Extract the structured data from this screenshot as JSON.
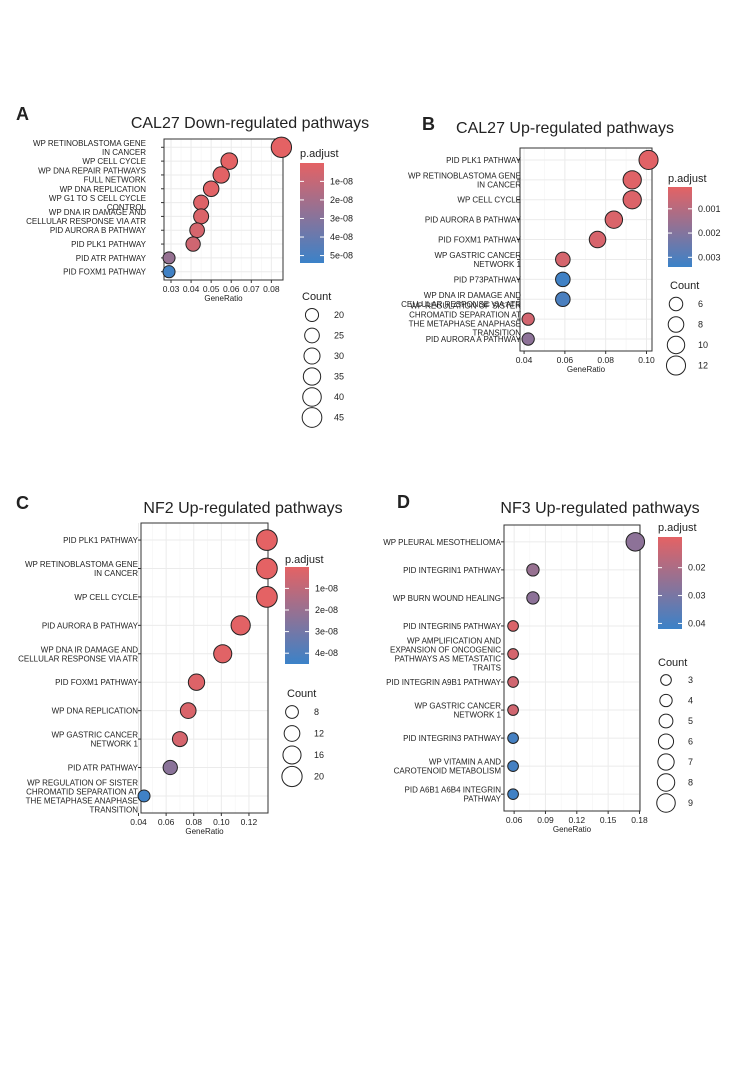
{
  "chart_data": [
    {
      "panel": "A",
      "type": "scatter",
      "title": "CAL27 Down-regulated pathways",
      "xlabel": "GeneRatio",
      "xlim": [
        0.0265,
        0.0858
      ],
      "xticks": [
        "0.03",
        "0.04",
        "0.05",
        "0.06",
        "0.07",
        "0.08"
      ],
      "xtick_values": [
        0.03,
        0.04,
        0.05,
        0.06,
        0.07,
        0.08
      ],
      "categories": [
        [
          "WP RETINOBLASTOMA GENE",
          "IN CANCER"
        ],
        [
          "WP CELL CYCLE"
        ],
        [
          "WP DNA REPAIR PATHWAYS",
          "FULL NETWORK"
        ],
        [
          "WP DNA REPLICATION"
        ],
        [
          "WP G1 TO S CELL CYCLE",
          "CONTROL"
        ],
        [
          "WP DNA IR DAMAGE AND",
          "CELLULAR RESPONSE VIA ATR"
        ],
        [
          "PID AURORA B PATHWAY"
        ],
        [
          "PID PLK1 PATHWAY"
        ],
        [
          "PID ATR PATHWAY"
        ],
        [
          "PID FOXM1 PATHWAY"
        ]
      ],
      "gene_ratio": [
        0.085,
        0.059,
        0.055,
        0.05,
        0.045,
        0.045,
        0.043,
        0.041,
        0.029,
        0.029
      ],
      "count": [
        48,
        32,
        31,
        28,
        26,
        26,
        25,
        24,
        17,
        17
      ],
      "p_adjust": [
        1e-10,
        2e-10,
        5e-10,
        1e-09,
        2e-09,
        3e-09,
        5e-09,
        7e-09,
        2.5e-08,
        5.2e-08
      ],
      "color_title": "p.adjust",
      "color_range": [
        1e-10,
        5.4e-08
      ],
      "color_ticks": [
        "1e-08",
        "2e-08",
        "3e-08",
        "4e-08",
        "5e-08"
      ],
      "color_tick_values": [
        1e-08,
        2e-08,
        3e-08,
        4e-08,
        5e-08
      ],
      "size_title": "Count",
      "size_range": [
        17,
        48
      ],
      "size_ticks": [
        "20",
        "25",
        "30",
        "35",
        "40",
        "45"
      ],
      "size_tick_values": [
        20,
        25,
        30,
        35,
        40,
        45
      ]
    },
    {
      "panel": "B",
      "type": "scatter",
      "title": "CAL27 Up-regulated pathways",
      "xlabel": "GeneRatio",
      "xlim": [
        0.038,
        0.1027
      ],
      "xticks": [
        "0.04",
        "0.06",
        "0.08",
        "0.10"
      ],
      "xtick_values": [
        0.04,
        0.06,
        0.08,
        0.1
      ],
      "categories": [
        [
          "PID PLK1 PATHWAY"
        ],
        [
          "WP RETINOBLASTOMA GENE",
          "IN CANCER"
        ],
        [
          "WP CELL CYCLE"
        ],
        [
          "PID AURORA B PATHWAY"
        ],
        [
          "PID FOXM1 PATHWAY"
        ],
        [
          "WP GASTRIC CANCER",
          "NETWORK 1"
        ],
        [
          "PID P73PATHWAY"
        ],
        [
          "WP DNA IR DAMAGE AND",
          "CELLULAR RESPONSE VIA ATR"
        ],
        [
          "WP REGULATION OF SISTER",
          "CHROMATID SEPARATION AT",
          "THE METAPHASE ANAPHASE",
          "TRANSITION"
        ],
        [
          "PID AURORA A PATHWAY"
        ]
      ],
      "gene_ratio": [
        0.101,
        0.093,
        0.093,
        0.084,
        0.076,
        0.059,
        0.059,
        0.059,
        0.042,
        0.042
      ],
      "count": [
        12,
        11,
        11,
        10,
        9,
        7,
        7,
        7,
        5,
        5
      ],
      "p_adjust": [
        0.00015,
        0.0002,
        0.00025,
        0.0003,
        0.00035,
        0.0004,
        0.0033,
        0.0031,
        0.00045,
        0.0018
      ],
      "color_title": "p.adjust",
      "color_range": [
        0.0001,
        0.0034
      ],
      "color_ticks": [
        "0.001",
        "0.002",
        "0.003"
      ],
      "color_tick_values": [
        0.001,
        0.002,
        0.003
      ],
      "size_title": "Count",
      "size_range": [
        5,
        12
      ],
      "size_ticks": [
        "6",
        "8",
        "10",
        "12"
      ],
      "size_tick_values": [
        6,
        8,
        10,
        12
      ]
    },
    {
      "panel": "C",
      "type": "scatter",
      "title": "NF2 Up-regulated pathways",
      "xlabel": "GeneRatio",
      "xlim": [
        0.0418,
        0.1338
      ],
      "xticks": [
        "0.04",
        "0.06",
        "0.08",
        "0.10",
        "0.12"
      ],
      "xtick_values": [
        0.04,
        0.06,
        0.08,
        0.1,
        0.12
      ],
      "categories": [
        [
          "PID PLK1 PATHWAY"
        ],
        [
          "WP RETINOBLASTOMA GENE",
          "IN CANCER"
        ],
        [
          "WP CELL CYCLE"
        ],
        [
          "PID AURORA B PATHWAY"
        ],
        [
          "WP DNA IR DAMAGE AND",
          "CELLULAR RESPONSE VIA ATR"
        ],
        [
          "PID FOXM1 PATHWAY"
        ],
        [
          "WP DNA REPLICATION"
        ],
        [
          "WP GASTRIC CANCER",
          "NETWORK 1"
        ],
        [
          "PID ATR PATHWAY"
        ],
        [
          "WP REGULATION OF SISTER",
          "CHROMATID SEPARATION AT",
          "THE METAPHASE ANAPHASE",
          "TRANSITION"
        ]
      ],
      "gene_ratio": [
        0.133,
        0.133,
        0.133,
        0.114,
        0.101,
        0.082,
        0.076,
        0.07,
        0.063,
        0.044
      ],
      "count": [
        21,
        21,
        21,
        18,
        16,
        13,
        12,
        11,
        10,
        7
      ],
      "p_adjust": [
        1e-10,
        1e-10,
        2e-10,
        5e-10,
        1e-09,
        2e-09,
        3e-09,
        4e-09,
        2.4e-08,
        4.4e-08
      ],
      "color_title": "p.adjust",
      "color_range": [
        1e-10,
        4.5e-08
      ],
      "color_ticks": [
        "1e-08",
        "2e-08",
        "3e-08",
        "4e-08"
      ],
      "color_tick_values": [
        1e-08,
        2e-08,
        3e-08,
        4e-08
      ],
      "size_title": "Count",
      "size_range": [
        7,
        21
      ],
      "size_ticks": [
        "8",
        "12",
        "16",
        "20"
      ],
      "size_tick_values": [
        8,
        12,
        16,
        20
      ]
    },
    {
      "panel": "D",
      "type": "scatter",
      "title": "NF3 Up-regulated pathways",
      "xlabel": "GeneRatio",
      "xlim": [
        0.0503,
        0.1805
      ],
      "xticks": [
        "0.06",
        "0.09",
        "0.12",
        "0.15",
        "0.18"
      ],
      "xtick_values": [
        0.06,
        0.09,
        0.12,
        0.15,
        0.18
      ],
      "categories": [
        [
          "WP PLEURAL MESOTHELIOMA"
        ],
        [
          "PID INTEGRIN1 PATHWAY"
        ],
        [
          "WP BURN WOUND HEALING"
        ],
        [
          "PID INTEGRIN5 PATHWAY"
        ],
        [
          "WP AMPLIFICATION AND",
          "EXPANSION OF ONCOGENIC",
          "PATHWAYS AS METASTATIC",
          "TRAITS"
        ],
        [
          "PID INTEGRIN A9B1 PATHWAY"
        ],
        [
          "WP GASTRIC CANCER",
          "NETWORK 1"
        ],
        [
          "PID INTEGRIN3 PATHWAY"
        ],
        [
          "WP VITAMIN A AND",
          "CAROTENOID METABOLISM"
        ],
        [
          "PID A6B1 A6B4 INTEGRIN",
          "PATHWAY"
        ]
      ],
      "gene_ratio": [
        0.176,
        0.078,
        0.078,
        0.059,
        0.059,
        0.059,
        0.059,
        0.059,
        0.059,
        0.059
      ],
      "count": [
        9,
        4,
        4,
        3,
        3,
        3,
        3,
        3,
        3,
        3
      ],
      "p_adjust": [
        0.026,
        0.024,
        0.026,
        0.011,
        0.012,
        0.013,
        0.013,
        0.04,
        0.04,
        0.041
      ],
      "color_title": "p.adjust",
      "color_range": [
        0.009,
        0.042
      ],
      "color_ticks": [
        "0.02",
        "0.03",
        "0.04"
      ],
      "color_tick_values": [
        0.02,
        0.03,
        0.04
      ],
      "size_title": "Count",
      "size_range": [
        3,
        9
      ],
      "size_ticks": [
        "3",
        "4",
        "5",
        "6",
        "7",
        "8",
        "9"
      ],
      "size_tick_values": [
        3,
        4,
        5,
        6,
        7,
        8,
        9
      ]
    }
  ],
  "colors": {
    "low_p": "#e46264",
    "high_p": "#3b82c8",
    "grid": "#ebebeb",
    "text": "#222222"
  }
}
